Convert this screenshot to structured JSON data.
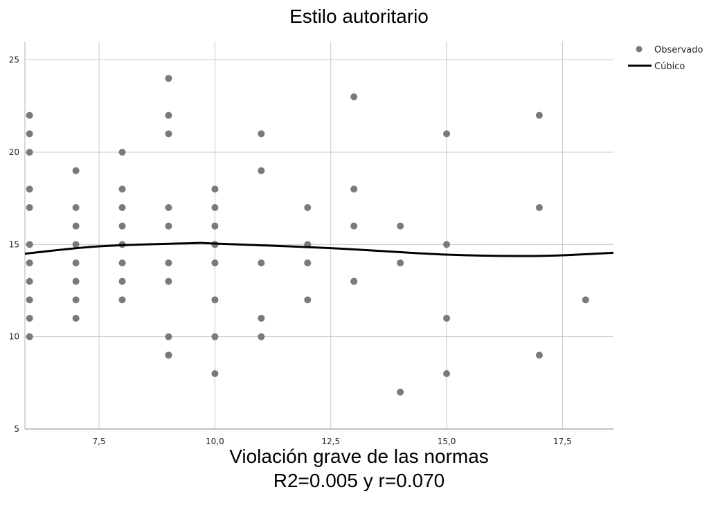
{
  "chart_data": {
    "type": "scatter",
    "title": "Estilo autoritario",
    "xlabel": "Violación grave de las normas",
    "subtitle": "R2=0.005 y r=0.070",
    "xlim": [
      5.9,
      18.6
    ],
    "ylim": [
      5,
      26
    ],
    "x_ticks": [
      7.5,
      10.0,
      12.5,
      15.0,
      17.5
    ],
    "x_tick_labels": [
      "7,5",
      "10,0",
      "12,5",
      "15,0",
      "17,5"
    ],
    "y_ticks": [
      5,
      10,
      15,
      20,
      25
    ],
    "y_tick_labels": [
      "5",
      "10",
      "15",
      "20",
      "25"
    ],
    "grid": true,
    "legend_position": "top-right",
    "series": [
      {
        "name": "Observado",
        "kind": "points",
        "color": "#7a7a7a",
        "x": [
          6,
          6,
          6,
          6,
          6,
          6,
          6,
          6,
          6,
          6,
          6,
          7,
          7,
          7,
          7,
          7,
          7,
          7,
          7,
          8,
          8,
          8,
          8,
          8,
          8,
          8,
          8,
          9,
          9,
          9,
          9,
          9,
          9,
          9,
          9,
          9,
          9,
          10,
          10,
          10,
          10,
          10,
          10,
          10,
          10,
          10,
          11,
          11,
          11,
          11,
          11,
          12,
          12,
          12,
          12,
          13,
          13,
          13,
          13,
          13,
          14,
          14,
          14,
          15,
          15,
          15,
          15,
          17,
          17,
          17,
          18
        ],
        "y": [
          22,
          21,
          20,
          18,
          17,
          15,
          14,
          13,
          12,
          11,
          10,
          19,
          17,
          16,
          15,
          14,
          13,
          12,
          11,
          20,
          18,
          17,
          16,
          15,
          14,
          13,
          12,
          24,
          22,
          21,
          17,
          16,
          14,
          13,
          10,
          9,
          9,
          18,
          17,
          16,
          15,
          14,
          12,
          10,
          8,
          15,
          21,
          19,
          14,
          11,
          10,
          17,
          15,
          14,
          12,
          23,
          18,
          16,
          13,
          13,
          16,
          14,
          7,
          21,
          15,
          11,
          8,
          22,
          17,
          9,
          12
        ]
      },
      {
        "name": "Cúbico",
        "kind": "line",
        "color": "#000000",
        "x": [
          5.9,
          7.5,
          9.5,
          10.0,
          12.5,
          15.0,
          17.0,
          18.6
        ],
        "y": [
          14.5,
          14.9,
          15.07,
          15.05,
          14.8,
          14.45,
          14.38,
          14.55
        ]
      }
    ]
  }
}
